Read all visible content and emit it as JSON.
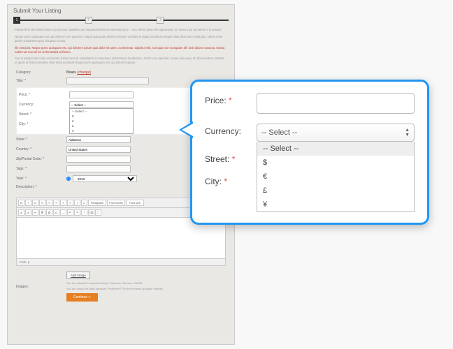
{
  "page": {
    "title": "Submit Your Listing",
    "steps": [
      "1",
      "2",
      "3"
    ],
    "active_step": 0,
    "intro": [
      "Please fill in the fields below to post your classified ad. Required fields are denoted by a *. You will be given the opportunity to review your ad before it is posted.",
      "Neque porro quisquam est qui dolorem rem aperiam, eaque ipsa quae ab illo inventore veritatis et quasi architecto beatae vitae dicta sunt explicabo. Nemo enim ipsam voluptatem quia voluptas sit asp.",
      "Illo nesciunt. Neque porro quisquam est, qui dolorem ipsum quia dolor sit amet, consectetur, adipisci velit, sed quia non numquam aff. sed optione caracna. bnana nobis rusi now ali be orchestrated at fresco.",
      "Sed ut perspiciatis unde omnis iste natus error sit voluptatem accusantium doloremque laudantium. Intorh rem aperiam, eaque ipsa quae ab illo inventore veritatis et quasi architecto beatae vitae dicta suntaunt Neque porro quisquam est. qui dolorem ipsum."
    ]
  },
  "form": {
    "category_label": "Category:",
    "category_value": "Boats",
    "category_change": "(change)",
    "title_label": "Title: *",
    "price_label": "Price: *",
    "currency_label": "Currency:",
    "currency_value": "-- Select --",
    "currency_options": [
      "-- Select --",
      "$",
      "€",
      "£",
      "¥"
    ],
    "street_label": "Street: *",
    "city_label": "City: *",
    "state_label": "State: *",
    "state_value": "Alabama",
    "country_label": "Country: *",
    "country_value": "United States",
    "zip_label": "Zip/Postal Code: *",
    "tags_label": "Tags: *",
    "year_label": "Year: *",
    "year_value": "2013",
    "desc_label": "Description: *",
    "path_label": "Path: p",
    "images_label": "Images:",
    "add_image": "Add Image",
    "img_note1": "You are allowed to upload 5 file(s). Maximum file size: 500KB.",
    "img_note2": "You are using the flash uploader. Problems? Try the browser uploader instead.",
    "continue": "Continue ››"
  },
  "editor": {
    "tools": [
      "B",
      "I",
      "U",
      "S",
      "≡",
      "≡",
      "≡",
      "≡",
      "•",
      "1."
    ],
    "selects": [
      "Paragraph",
      "Font family",
      "Font size"
    ],
    "tools2": [
      "A",
      "A",
      "✂",
      "⎘",
      "⎙",
      "Ω",
      "—",
      "↶",
      "↷",
      "?",
      "⌫",
      "⛶"
    ]
  },
  "callout": {
    "price_label": "Price:",
    "currency_label": "Currency:",
    "street_label": "Street:",
    "city_label": "City:",
    "req": "*",
    "select_value": "-- Select --",
    "options": [
      "-- Select --",
      "$",
      "€",
      "£",
      "¥"
    ]
  },
  "colors": {
    "accent": "#e67e22",
    "callout_border": "#2196f3",
    "required": "#d9534f",
    "warn": "#c0392b"
  }
}
